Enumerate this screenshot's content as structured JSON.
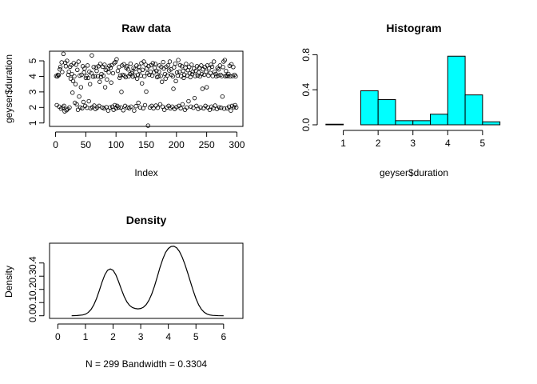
{
  "chart_data": [
    {
      "type": "scatter",
      "title": "Raw data",
      "xlabel": "Index",
      "ylabel": "geyser$duration",
      "xlim": [
        -10,
        310
      ],
      "ylim": [
        0.78,
        5.62
      ],
      "xticks": [
        0,
        50,
        100,
        150,
        200,
        250,
        300
      ],
      "yticks": [
        1,
        2,
        3,
        4,
        5
      ],
      "marker": "open-circle",
      "n_points": 299,
      "points": [
        [
          1,
          4.02
        ],
        [
          2,
          2.15
        ],
        [
          3,
          4.0
        ],
        [
          4,
          4.1
        ],
        [
          5,
          4.08
        ],
        [
          6,
          2.05
        ],
        [
          7,
          4.45
        ],
        [
          8,
          4.6
        ],
        [
          9,
          1.92
        ],
        [
          10,
          4.9
        ],
        [
          11,
          4.28
        ],
        [
          12,
          2.0
        ],
        [
          13,
          5.45
        ],
        [
          14,
          2.1
        ],
        [
          15,
          1.75
        ],
        [
          16,
          4.88
        ],
        [
          17,
          4.65
        ],
        [
          18,
          1.82
        ],
        [
          19,
          5.0
        ],
        [
          20,
          1.9
        ],
        [
          21,
          4.1
        ],
        [
          22,
          4.3
        ],
        [
          23,
          2.0
        ],
        [
          24,
          4.62
        ],
        [
          25,
          3.85
        ],
        [
          26,
          4.72
        ],
        [
          27,
          4.15
        ],
        [
          28,
          2.95
        ],
        [
          29,
          3.7
        ],
        [
          30,
          4.85
        ],
        [
          31,
          4.0
        ],
        [
          32,
          2.3
        ],
        [
          33,
          3.5
        ],
        [
          34,
          4.75
        ],
        [
          35,
          2.2
        ],
        [
          36,
          4.42
        ],
        [
          37,
          1.85
        ],
        [
          38,
          4.95
        ],
        [
          39,
          2.7
        ],
        [
          40,
          4.05
        ],
        [
          41,
          2.0
        ],
        [
          42,
          3.3
        ],
        [
          43,
          4.1
        ],
        [
          44,
          1.95
        ],
        [
          45,
          4.65
        ],
        [
          46,
          2.35
        ],
        [
          47,
          4.25
        ],
        [
          48,
          4.5
        ],
        [
          49,
          2.1
        ],
        [
          50,
          3.9
        ],
        [
          51,
          4.02
        ],
        [
          52,
          1.98
        ],
        [
          53,
          4.7
        ],
        [
          54,
          3.9
        ],
        [
          55,
          2.4
        ],
        [
          56,
          4.3
        ],
        [
          57,
          3.5
        ],
        [
          58,
          1.95
        ],
        [
          59,
          4.2
        ],
        [
          60,
          5.35
        ],
        [
          61,
          2.02
        ],
        [
          62,
          3.98
        ],
        [
          63,
          4.6
        ],
        [
          64,
          2.12
        ],
        [
          65,
          4.0
        ],
        [
          66,
          1.9
        ],
        [
          67,
          4.58
        ],
        [
          68,
          4.35
        ],
        [
          69,
          2.0
        ],
        [
          70,
          4.0
        ],
        [
          71,
          4.65
        ],
        [
          72,
          2.1
        ],
        [
          73,
          3.65
        ],
        [
          74,
          4.8
        ],
        [
          75,
          3.95
        ],
        [
          76,
          4.15
        ],
        [
          77,
          2.0
        ],
        [
          78,
          4.62
        ],
        [
          79,
          4.05
        ],
        [
          80,
          1.95
        ],
        [
          81,
          4.75
        ],
        [
          82,
          3.3
        ],
        [
          83,
          4.42
        ],
        [
          84,
          2.02
        ],
        [
          85,
          3.8
        ],
        [
          86,
          4.5
        ],
        [
          87,
          1.8
        ],
        [
          88,
          4.25
        ],
        [
          89,
          4.68
        ],
        [
          90,
          2.0
        ],
        [
          91,
          4.55
        ],
        [
          92,
          3.6
        ],
        [
          93,
          4.72
        ],
        [
          94,
          2.05
        ],
        [
          95,
          4.2
        ],
        [
          96,
          1.85
        ],
        [
          97,
          4.85
        ],
        [
          98,
          2.15
        ],
        [
          99,
          4.92
        ],
        [
          100,
          1.95
        ],
        [
          101,
          5.1
        ],
        [
          102,
          2.1
        ],
        [
          103,
          4.35
        ],
        [
          104,
          2.0
        ],
        [
          105,
          4.6
        ],
        [
          106,
          3.9
        ],
        [
          107,
          4.05
        ],
        [
          108,
          2.0
        ],
        [
          109,
          3.0
        ],
        [
          110,
          4.7
        ],
        [
          111,
          4.1
        ],
        [
          112,
          1.82
        ],
        [
          113,
          4.78
        ],
        [
          114,
          4.05
        ],
        [
          115,
          2.1
        ],
        [
          116,
          3.95
        ],
        [
          117,
          4.55
        ],
        [
          118,
          4.65
        ],
        [
          119,
          2.0
        ],
        [
          120,
          4.45
        ],
        [
          121,
          4.0
        ],
        [
          122,
          1.95
        ],
        [
          123,
          4.15
        ],
        [
          124,
          4.82
        ],
        [
          125,
          2.05
        ],
        [
          126,
          4.2
        ],
        [
          127,
          4.3
        ],
        [
          128,
          3.98
        ],
        [
          129,
          4.55
        ],
        [
          130,
          1.8
        ],
        [
          131,
          4.05
        ],
        [
          132,
          4.48
        ],
        [
          133,
          2.08
        ],
        [
          134,
          4.7
        ],
        [
          135,
          3.85
        ],
        [
          136,
          4.1
        ],
        [
          137,
          2.3
        ],
        [
          138,
          4.62
        ],
        [
          139,
          4.35
        ],
        [
          140,
          2.0
        ],
        [
          141,
          4.05
        ],
        [
          142,
          4.85
        ],
        [
          143,
          3.55
        ],
        [
          144,
          4.42
        ],
        [
          145,
          1.95
        ],
        [
          146,
          4.95
        ],
        [
          147,
          4.0
        ],
        [
          148,
          2.15
        ],
        [
          149,
          4.75
        ],
        [
          150,
          3.02
        ],
        [
          151,
          4.5
        ],
        [
          152,
          4.2
        ],
        [
          153,
          0.83
        ],
        [
          154,
          4.65
        ],
        [
          155,
          4.1
        ],
        [
          156,
          2.0
        ],
        [
          157,
          4.3
        ],
        [
          158,
          4.72
        ],
        [
          159,
          2.1
        ],
        [
          160,
          4.05
        ],
        [
          161,
          4.85
        ],
        [
          162,
          1.95
        ],
        [
          163,
          4.25
        ],
        [
          164,
          4.55
        ],
        [
          165,
          4.8
        ],
        [
          166,
          2.12
        ],
        [
          167,
          4.35
        ],
        [
          168,
          3.95
        ],
        [
          169,
          1.98
        ],
        [
          170,
          4.0
        ],
        [
          171,
          4.3
        ],
        [
          172,
          4.7
        ],
        [
          173,
          2.2
        ],
        [
          174,
          4.02
        ],
        [
          175,
          4.6
        ],
        [
          176,
          3.65
        ],
        [
          177,
          2.05
        ],
        [
          178,
          4.92
        ],
        [
          179,
          4.5
        ],
        [
          180,
          1.85
        ],
        [
          181,
          4.15
        ],
        [
          182,
          3.85
        ],
        [
          183,
          4.62
        ],
        [
          184,
          2.0
        ],
        [
          185,
          4.05
        ],
        [
          186,
          4.7
        ],
        [
          187,
          2.1
        ],
        [
          188,
          4.38
        ],
        [
          189,
          4.95
        ],
        [
          190,
          1.95
        ],
        [
          191,
          4.45
        ],
        [
          192,
          4.1
        ],
        [
          193,
          2.05
        ],
        [
          194,
          4.0
        ],
        [
          195,
          3.2
        ],
        [
          196,
          4.58
        ],
        [
          197,
          1.9
        ],
        [
          198,
          4.82
        ],
        [
          199,
          3.7
        ],
        [
          200,
          2.02
        ],
        [
          201,
          4.25
        ],
        [
          202,
          4.05
        ],
        [
          203,
          5.05
        ],
        [
          204,
          2.1
        ],
        [
          205,
          4.3
        ],
        [
          206,
          4.72
        ],
        [
          207,
          1.95
        ],
        [
          208,
          4.0
        ],
        [
          209,
          4.65
        ],
        [
          210,
          2.2
        ],
        [
          211,
          4.35
        ],
        [
          212,
          3.9
        ],
        [
          213,
          4.1
        ],
        [
          214,
          1.85
        ],
        [
          215,
          4.55
        ],
        [
          216,
          4.8
        ],
        [
          217,
          2.0
        ],
        [
          218,
          4.05
        ],
        [
          219,
          4.4
        ],
        [
          220,
          2.4
        ],
        [
          221,
          4.6
        ],
        [
          222,
          4.2
        ],
        [
          223,
          3.95
        ],
        [
          224,
          2.05
        ],
        [
          225,
          4.75
        ],
        [
          226,
          4.15
        ],
        [
          227,
          4.3
        ],
        [
          228,
          1.98
        ],
        [
          229,
          4.5
        ],
        [
          230,
          2.6
        ],
        [
          231,
          4.02
        ],
        [
          232,
          4.35
        ],
        [
          233,
          2.1
        ],
        [
          234,
          4.65
        ],
        [
          235,
          4.05
        ],
        [
          236,
          1.9
        ],
        [
          237,
          4.25
        ],
        [
          238,
          4.55
        ],
        [
          239,
          4.0
        ],
        [
          240,
          2.0
        ],
        [
          241,
          4.7
        ],
        [
          242,
          4.15
        ],
        [
          243,
          3.2
        ],
        [
          244,
          4.45
        ],
        [
          245,
          1.95
        ],
        [
          246,
          4.1
        ],
        [
          247,
          4.6
        ],
        [
          248,
          2.1
        ],
        [
          249,
          4.3
        ],
        [
          250,
          3.3
        ],
        [
          251,
          4.7
        ],
        [
          252,
          2.0
        ],
        [
          253,
          4.05
        ],
        [
          254,
          4.52
        ],
        [
          255,
          1.85
        ],
        [
          256,
          4.22
        ],
        [
          257,
          4.75
        ],
        [
          258,
          2.05
        ],
        [
          259,
          4.62
        ],
        [
          260,
          4.02
        ],
        [
          261,
          1.95
        ],
        [
          262,
          4.95
        ],
        [
          263,
          4.3
        ],
        [
          264,
          2.12
        ],
        [
          265,
          4.15
        ],
        [
          266,
          4.0
        ],
        [
          267,
          1.9
        ],
        [
          268,
          4.55
        ],
        [
          269,
          4.05
        ],
        [
          270,
          4.45
        ],
        [
          271,
          2.0
        ],
        [
          272,
          4.7
        ],
        [
          273,
          4.1
        ],
        [
          274,
          1.98
        ],
        [
          275,
          4.02
        ],
        [
          276,
          2.7
        ],
        [
          277,
          4.6
        ],
        [
          278,
          4.95
        ],
        [
          279,
          1.92
        ],
        [
          280,
          5.05
        ],
        [
          281,
          4.0
        ],
        [
          282,
          4.35
        ],
        [
          283,
          4.05
        ],
        [
          284,
          1.95
        ],
        [
          285,
          4.02
        ],
        [
          286,
          4.15
        ],
        [
          287,
          2.05
        ],
        [
          288,
          4.68
        ],
        [
          289,
          4.0
        ],
        [
          290,
          1.8
        ],
        [
          291,
          4.78
        ],
        [
          292,
          2.1
        ],
        [
          293,
          4.02
        ],
        [
          294,
          4.6
        ],
        [
          295,
          2.02
        ],
        [
          296,
          4.1
        ],
        [
          297,
          2.15
        ],
        [
          298,
          4.0
        ],
        [
          299,
          2.0
        ]
      ]
    },
    {
      "type": "bar",
      "subtype": "histogram",
      "title": "Histogram",
      "xlabel": "geyser$duration",
      "ylabel": "",
      "xlim": [
        0.55,
        5.6
      ],
      "ylim": [
        0,
        0.84
      ],
      "xticks": [
        1,
        2,
        3,
        4,
        5
      ],
      "yticks": [
        0.0,
        0.4,
        0.8
      ],
      "ytick_labels": [
        "0.0",
        "0.4",
        "0.8"
      ],
      "fill_color": "#00ffff",
      "bin_edges": [
        0.5,
        1.0,
        1.5,
        2.0,
        2.5,
        3.0,
        3.5,
        4.0,
        4.5,
        5.0,
        5.5
      ],
      "values": [
        0.007,
        0.0,
        0.388,
        0.288,
        0.047,
        0.047,
        0.121,
        0.783,
        0.341,
        0.034
      ]
    },
    {
      "type": "line",
      "subtype": "density",
      "title": "Density",
      "xlabel": "N = 299   Bandwidth = 0.3304",
      "ylabel": "Density",
      "xlim": [
        -0.3,
        6.7
      ],
      "ylim": [
        -0.02,
        0.55
      ],
      "xticks": [
        0,
        1,
        2,
        3,
        4,
        5,
        6
      ],
      "yticks": [
        0.0,
        0.1,
        0.2,
        0.3,
        0.4
      ],
      "ytick_labels": [
        "0.0",
        "0.1",
        "0.2",
        "0.3",
        "0.4"
      ],
      "x": [
        0.5,
        0.7,
        0.9,
        1.0,
        1.1,
        1.2,
        1.3,
        1.4,
        1.5,
        1.6,
        1.7,
        1.8,
        1.9,
        2.0,
        2.1,
        2.2,
        2.3,
        2.4,
        2.5,
        2.6,
        2.7,
        2.8,
        2.9,
        3.0,
        3.1,
        3.2,
        3.3,
        3.4,
        3.5,
        3.6,
        3.7,
        3.8,
        3.9,
        4.0,
        4.1,
        4.2,
        4.3,
        4.4,
        4.5,
        4.6,
        4.7,
        4.8,
        4.9,
        5.0,
        5.1,
        5.2,
        5.3,
        5.4,
        5.5,
        5.6,
        5.8,
        6.0
      ],
      "y": [
        0.0,
        0.002,
        0.006,
        0.012,
        0.025,
        0.047,
        0.082,
        0.13,
        0.19,
        0.255,
        0.31,
        0.345,
        0.355,
        0.345,
        0.31,
        0.258,
        0.2,
        0.147,
        0.105,
        0.078,
        0.062,
        0.055,
        0.052,
        0.055,
        0.065,
        0.085,
        0.118,
        0.165,
        0.225,
        0.295,
        0.368,
        0.43,
        0.48,
        0.51,
        0.525,
        0.527,
        0.515,
        0.488,
        0.445,
        0.39,
        0.325,
        0.258,
        0.19,
        0.13,
        0.082,
        0.048,
        0.026,
        0.013,
        0.006,
        0.003,
        0.001,
        0.0
      ]
    }
  ]
}
